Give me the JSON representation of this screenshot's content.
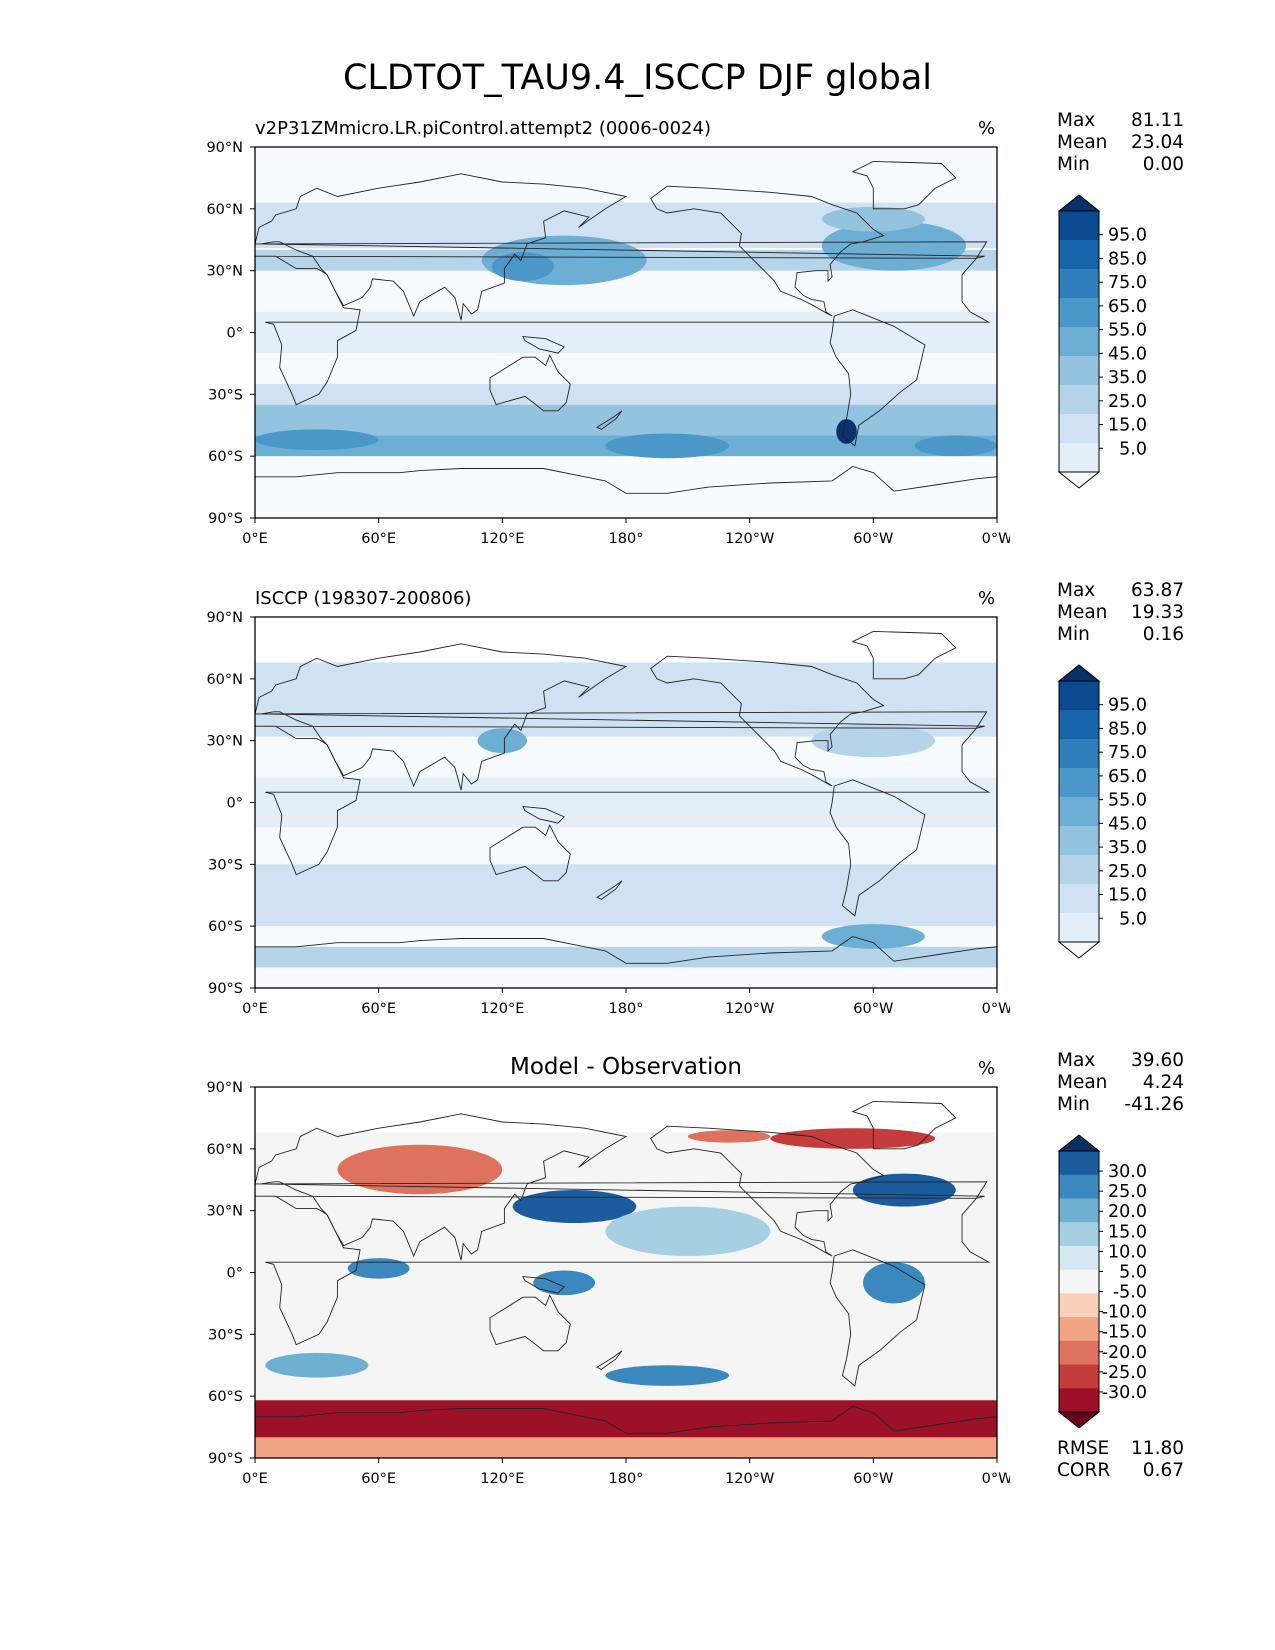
{
  "figure_title": "CLDTOT_TAU9.4_ISCCP DJF global",
  "lat_ticks": [
    "90°N",
    "60°N",
    "30°N",
    "0°",
    "30°S",
    "60°S",
    "90°S"
  ],
  "lon_ticks": [
    "0°E",
    "60°E",
    "120°E",
    "180°",
    "120°W",
    "60°W",
    "0°W"
  ],
  "panels": [
    {
      "title": "v2P31ZMmicro.LR.piControl.attempt2 (0006-0024)",
      "units": "%",
      "stats": [
        {
          "label": "Max",
          "value": "81.11"
        },
        {
          "label": "Mean",
          "value": "23.04"
        },
        {
          "label": "Min",
          "value": "0.00"
        }
      ],
      "colorbar_labels": [
        "95.0",
        "85.0",
        "75.0",
        "65.0",
        "55.0",
        "45.0",
        "35.0",
        "25.0",
        "15.0",
        "5.0"
      ]
    },
    {
      "title": "ISCCP (198307-200806)",
      "units": "%",
      "stats": [
        {
          "label": "Max",
          "value": "63.87"
        },
        {
          "label": "Mean",
          "value": "19.33"
        },
        {
          "label": "Min",
          "value": "0.16"
        }
      ],
      "colorbar_labels": [
        "95.0",
        "85.0",
        "75.0",
        "65.0",
        "55.0",
        "45.0",
        "35.0",
        "25.0",
        "15.0",
        "5.0"
      ]
    },
    {
      "title": "Model - Observation",
      "units": "%",
      "stats": [
        {
          "label": "Max",
          "value": "39.60"
        },
        {
          "label": "Mean",
          "value": "4.24"
        },
        {
          "label": "Min",
          "value": "-41.26"
        }
      ],
      "colorbar_labels": [
        "30.0",
        "25.0",
        "20.0",
        "15.0",
        "10.0",
        "5.0",
        "-5.0",
        "-10.0",
        "-15.0",
        "-20.0",
        "-25.0",
        "-30.0"
      ],
      "metrics": [
        {
          "label": "RMSE",
          "value": "11.80"
        },
        {
          "label": "CORR",
          "value": "0.67"
        }
      ]
    }
  ],
  "colors": {
    "blues": [
      "#f7fbff",
      "#e3eef9",
      "#cfe1f2",
      "#b5d4e9",
      "#93c3df",
      "#6daed5",
      "#4b97c9",
      "#2f7ebc",
      "#1864aa",
      "#0a4a90",
      "#08306b"
    ],
    "diff": [
      "#67001f",
      "#9c1127",
      "#c43c3c",
      "#de725e",
      "#f2a585",
      "#fbd0b9",
      "#f5f5f5",
      "#d5e7f1",
      "#a7cfe4",
      "#6fafd2",
      "#3b88be",
      "#1b5c9e",
      "#053061"
    ]
  }
}
